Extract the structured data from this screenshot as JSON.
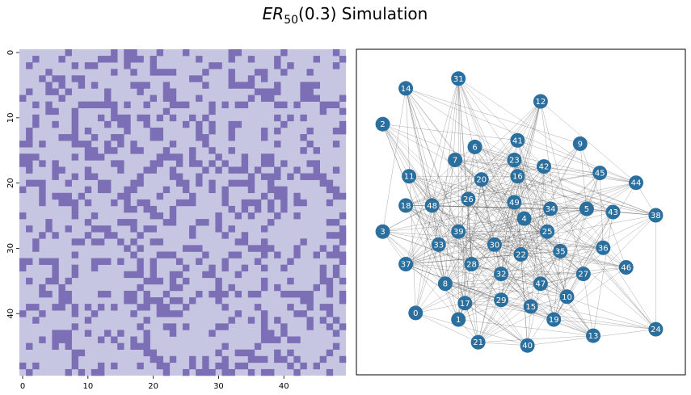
{
  "figure": {
    "title_base": "ER",
    "title_sub": "50",
    "title_rest": "(0.3) Simulation",
    "colors": {
      "cell_off": "#c6c6e2",
      "cell_on": "#7c6fb6",
      "node": "#2b6f9e",
      "edge": "#555555",
      "node_text": "#ffffff"
    }
  },
  "chart_data": [
    {
      "type": "heatmap",
      "title": "",
      "n": 50,
      "xticks": [
        0,
        10,
        20,
        30,
        40
      ],
      "yticks": [
        0,
        10,
        20,
        30,
        40
      ],
      "xlim": [
        -0.5,
        49.5
      ],
      "ylim": [
        49.5,
        -0.5
      ],
      "values_note": "",
      "density": 0.3
    },
    {
      "type": "network",
      "title": "",
      "nodes": [
        {
          "id": "0",
          "x": 0.18,
          "y": 0.19
        },
        {
          "id": "1",
          "x": 0.31,
          "y": 0.17
        },
        {
          "id": "2",
          "x": 0.08,
          "y": 0.77
        },
        {
          "id": "3",
          "x": 0.08,
          "y": 0.44
        },
        {
          "id": "4",
          "x": 0.51,
          "y": 0.48
        },
        {
          "id": "5",
          "x": 0.7,
          "y": 0.51
        },
        {
          "id": "6",
          "x": 0.36,
          "y": 0.7
        },
        {
          "id": "7",
          "x": 0.3,
          "y": 0.66
        },
        {
          "id": "8",
          "x": 0.27,
          "y": 0.28
        },
        {
          "id": "9",
          "x": 0.68,
          "y": 0.71
        },
        {
          "id": "10",
          "x": 0.64,
          "y": 0.24
        },
        {
          "id": "11",
          "x": 0.16,
          "y": 0.61
        },
        {
          "id": "12",
          "x": 0.56,
          "y": 0.84
        },
        {
          "id": "13",
          "x": 0.72,
          "y": 0.12
        },
        {
          "id": "14",
          "x": 0.15,
          "y": 0.88
        },
        {
          "id": "15",
          "x": 0.53,
          "y": 0.21
        },
        {
          "id": "16",
          "x": 0.49,
          "y": 0.61
        },
        {
          "id": "17",
          "x": 0.33,
          "y": 0.22
        },
        {
          "id": "18",
          "x": 0.15,
          "y": 0.52
        },
        {
          "id": "19",
          "x": 0.6,
          "y": 0.17
        },
        {
          "id": "20",
          "x": 0.38,
          "y": 0.6
        },
        {
          "id": "21",
          "x": 0.37,
          "y": 0.1
        },
        {
          "id": "22",
          "x": 0.5,
          "y": 0.37
        },
        {
          "id": "23",
          "x": 0.48,
          "y": 0.66
        },
        {
          "id": "24",
          "x": 0.91,
          "y": 0.14
        },
        {
          "id": "25",
          "x": 0.58,
          "y": 0.44
        },
        {
          "id": "26",
          "x": 0.34,
          "y": 0.54
        },
        {
          "id": "27",
          "x": 0.69,
          "y": 0.31
        },
        {
          "id": "28",
          "x": 0.35,
          "y": 0.34
        },
        {
          "id": "29",
          "x": 0.44,
          "y": 0.23
        },
        {
          "id": "30",
          "x": 0.42,
          "y": 0.4
        },
        {
          "id": "31",
          "x": 0.31,
          "y": 0.91
        },
        {
          "id": "32",
          "x": 0.44,
          "y": 0.31
        },
        {
          "id": "33",
          "x": 0.25,
          "y": 0.4
        },
        {
          "id": "34",
          "x": 0.59,
          "y": 0.51
        },
        {
          "id": "35",
          "x": 0.62,
          "y": 0.38
        },
        {
          "id": "36",
          "x": 0.75,
          "y": 0.39
        },
        {
          "id": "37",
          "x": 0.15,
          "y": 0.34
        },
        {
          "id": "38",
          "x": 0.91,
          "y": 0.49
        },
        {
          "id": "39",
          "x": 0.31,
          "y": 0.44
        },
        {
          "id": "40",
          "x": 0.52,
          "y": 0.09
        },
        {
          "id": "41",
          "x": 0.49,
          "y": 0.72
        },
        {
          "id": "42",
          "x": 0.57,
          "y": 0.64
        },
        {
          "id": "43",
          "x": 0.78,
          "y": 0.5
        },
        {
          "id": "44",
          "x": 0.85,
          "y": 0.59
        },
        {
          "id": "45",
          "x": 0.74,
          "y": 0.62
        },
        {
          "id": "46",
          "x": 0.82,
          "y": 0.33
        },
        {
          "id": "47",
          "x": 0.56,
          "y": 0.28
        },
        {
          "id": "48",
          "x": 0.23,
          "y": 0.52
        },
        {
          "id": "49",
          "x": 0.48,
          "y": 0.53
        }
      ]
    }
  ]
}
